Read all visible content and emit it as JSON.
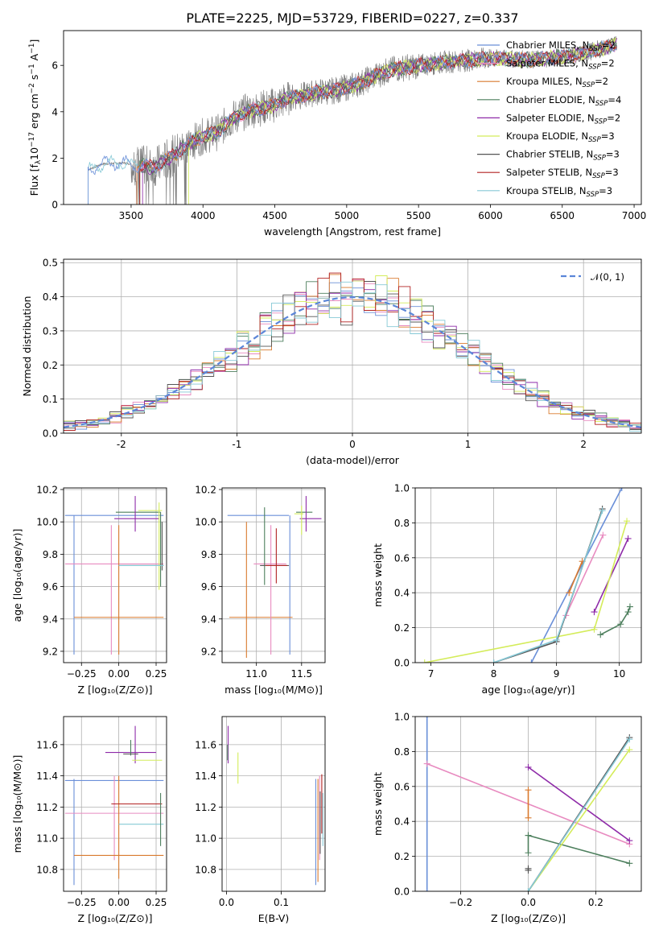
{
  "title": "PLATE=2225, MJD=53729, FIBERID=0227, z=0.337",
  "colors": {
    "chabrier_miles": "#6a8fd8",
    "salpeter_miles": "#e88bc0",
    "kroupa_miles": "#d97a2e",
    "chabrier_elodie": "#4d7f5d",
    "salpeter_elodie": "#8e2aa8",
    "kroupa_elodie": "#d4ec5a",
    "chabrier_stelib": "#555555",
    "salpeter_stelib": "#b22222",
    "kroupa_stelib": "#86c9d6",
    "gauss": "#5b86d8"
  },
  "chart_data": [
    {
      "id": "spectrum",
      "type": "line",
      "xlabel": "wavelength [Angstrom, rest frame]",
      "ylabel_parts": [
        "Flux [f",
        "λ",
        "10",
        "−17",
        " erg cm",
        "−2",
        " s",
        "−1",
        " A",
        "−1",
        "]"
      ],
      "xlim": [
        3030,
        7050
      ],
      "ylim": [
        0,
        7.5
      ],
      "xticks": [
        3500,
        4000,
        4500,
        5000,
        5500,
        6000,
        6500,
        7000
      ],
      "yticks": [
        0,
        2,
        4,
        6
      ],
      "start": 3200,
      "end": 6880,
      "continuum": [
        [
          3200,
          1.5
        ],
        [
          3300,
          1.75
        ],
        [
          3450,
          1.8
        ],
        [
          3550,
          1.7
        ],
        [
          3650,
          1.6
        ],
        [
          3700,
          1.75
        ],
        [
          3800,
          2.15
        ],
        [
          3900,
          2.6
        ],
        [
          4000,
          2.95
        ],
        [
          4100,
          3.1
        ],
        [
          4200,
          3.7
        ],
        [
          4300,
          4.0
        ],
        [
          4400,
          4.15
        ],
        [
          4500,
          4.3
        ],
        [
          4600,
          4.6
        ],
        [
          4700,
          4.7
        ],
        [
          4800,
          4.85
        ],
        [
          4900,
          4.9
        ],
        [
          5000,
          5.05
        ],
        [
          5100,
          5.25
        ],
        [
          5200,
          5.55
        ],
        [
          5300,
          5.8
        ],
        [
          5500,
          6.0
        ],
        [
          5700,
          6.15
        ],
        [
          6000,
          6.3
        ],
        [
          6300,
          6.25
        ],
        [
          6600,
          6.45
        ],
        [
          6880,
          6.9
        ]
      ],
      "legend": [
        {
          "label": "Chabrier MILES, N",
          "sub": "SSP",
          "tail": "=2",
          "color_key": "chabrier_miles"
        },
        {
          "label": "Salpeter MILES, N",
          "sub": "SSP",
          "tail": "=2",
          "color_key": "salpeter_miles"
        },
        {
          "label": "Kroupa MILES, N",
          "sub": "SSP",
          "tail": "=2",
          "color_key": "kroupa_miles"
        },
        {
          "label": "Chabrier ELODIE, N",
          "sub": "SSP",
          "tail": "=4",
          "color_key": "chabrier_elodie"
        },
        {
          "label": "Salpeter ELODIE, N",
          "sub": "SSP",
          "tail": "=2",
          "color_key": "salpeter_elodie"
        },
        {
          "label": "Kroupa ELODIE, N",
          "sub": "SSP",
          "tail": "=3",
          "color_key": "kroupa_elodie"
        },
        {
          "label": "Chabrier STELIB, N",
          "sub": "SSP",
          "tail": "=3",
          "color_key": "chabrier_stelib"
        },
        {
          "label": "Salpeter STELIB, N",
          "sub": "SSP",
          "tail": "=3",
          "color_key": "salpeter_stelib"
        },
        {
          "label": "Kroupa STELIB, N",
          "sub": "SSP",
          "tail": "=3",
          "color_key": "kroupa_stelib"
        }
      ]
    },
    {
      "id": "residuals",
      "type": "histogram",
      "xlabel": "(data-model)/error",
      "ylabel": "Normed distribution",
      "xlim": [
        -2.5,
        2.5
      ],
      "ylim": [
        0,
        0.51
      ],
      "xticks": [
        -2,
        -1,
        0,
        1,
        2
      ],
      "yticks": [
        0.0,
        0.1,
        0.2,
        0.3,
        0.4,
        0.5
      ],
      "bin_width": 0.1,
      "legend_label": "𝒩(0, 1)"
    },
    {
      "id": "age_vs_Z",
      "type": "errorbar",
      "xlabel": "Z [log₁₀(Z/Z⊙)]",
      "ylabel": "age  [log₁₀(age/yr)]",
      "xlim": [
        -0.37,
        0.32
      ],
      "ylim": [
        9.13,
        10.21
      ],
      "xticks": [
        -0.25,
        0.0,
        0.25
      ],
      "xtick_labels": [
        "−0.25",
        "0.00",
        "0.25"
      ],
      "yticks": [
        9.2,
        9.4,
        9.6,
        9.8,
        10.0,
        10.2
      ],
      "points": [
        {
          "x": -0.3,
          "xerr": 0.0,
          "y": 9.61,
          "yerr": 0.43,
          "c": "chabrier_miles"
        },
        {
          "x": -0.03,
          "xerr": 0.33,
          "y": 10.04,
          "yerr": 0.0,
          "c": "chabrier_miles"
        },
        {
          "x": -0.03,
          "xerr": 0.33,
          "y": 9.74,
          "yerr": 0.0,
          "c": "salpeter_miles"
        },
        {
          "x": -0.05,
          "xerr": 0.0,
          "y": 9.58,
          "yerr": 0.4,
          "c": "salpeter_miles"
        },
        {
          "x": 0.0,
          "xerr": 0.3,
          "y": 9.41,
          "yerr": 0.0,
          "c": "kroupa_miles"
        },
        {
          "x": 0.0,
          "xerr": 0.0,
          "y": 9.58,
          "yerr": 0.4,
          "c": "kroupa_miles"
        },
        {
          "x": 0.13,
          "xerr": 0.15,
          "y": 10.06,
          "yerr": 0.0,
          "c": "chabrier_elodie"
        },
        {
          "x": 0.28,
          "xerr": 0.0,
          "y": 9.83,
          "yerr": 0.23,
          "c": "chabrier_elodie"
        },
        {
          "x": 0.12,
          "xerr": 0.15,
          "y": 10.02,
          "yerr": 0.0,
          "c": "salpeter_elodie"
        },
        {
          "x": 0.11,
          "xerr": 0.0,
          "y": 10.05,
          "yerr": 0.11,
          "c": "salpeter_elodie"
        },
        {
          "x": 0.27,
          "xerr": 0.0,
          "y": 9.85,
          "yerr": 0.27,
          "c": "kroupa_elodie"
        },
        {
          "x": 0.21,
          "xerr": 0.08,
          "y": 10.07,
          "yerr": 0.0,
          "c": "kroupa_elodie"
        },
        {
          "x": 0.15,
          "xerr": 0.15,
          "y": 9.73,
          "yerr": 0.0,
          "c": "chabrier_stelib"
        },
        {
          "x": 0.29,
          "xerr": 0.0,
          "y": 9.85,
          "yerr": 0.15,
          "c": "chabrier_stelib"
        },
        {
          "x": 0.15,
          "xerr": 0.15,
          "y": 9.73,
          "yerr": 0.0,
          "c": "kroupa_stelib"
        }
      ]
    },
    {
      "id": "age_vs_mass",
      "type": "errorbar",
      "xlabel": "mass [log₁₀(M/M⊙)]",
      "ylabel": "",
      "xlim": [
        10.62,
        11.76
      ],
      "ylim": [
        9.13,
        10.21
      ],
      "xticks": [
        11.0,
        11.5
      ],
      "xtick_labels": [
        "11.0",
        "11.5"
      ],
      "yticks": [
        9.2,
        9.4,
        9.6,
        9.8,
        10.0,
        10.2
      ],
      "points": [
        {
          "x": 11.02,
          "xerr": 0.34,
          "y": 10.04,
          "yerr": 0.0,
          "c": "chabrier_miles"
        },
        {
          "x": 11.37,
          "xerr": 0.0,
          "y": 9.61,
          "yerr": 0.43,
          "c": "chabrier_miles"
        },
        {
          "x": 11.05,
          "xerr": 0.35,
          "y": 9.41,
          "yerr": 0.0,
          "c": "kroupa_miles"
        },
        {
          "x": 10.89,
          "xerr": 0.0,
          "y": 9.58,
          "yerr": 0.42,
          "c": "kroupa_miles"
        },
        {
          "x": 11.16,
          "xerr": 0.0,
          "y": 9.58,
          "yerr": 0.4,
          "c": "salpeter_miles"
        },
        {
          "x": 11.15,
          "xerr": 0.18,
          "y": 9.74,
          "yerr": 0.0,
          "c": "salpeter_miles"
        },
        {
          "x": 11.09,
          "xerr": 0.0,
          "y": 9.85,
          "yerr": 0.24,
          "c": "chabrier_elodie"
        },
        {
          "x": 11.2,
          "xerr": 0.16,
          "y": 9.73,
          "yerr": 0.0,
          "c": "chabrier_stelib"
        },
        {
          "x": 11.22,
          "xerr": 0.0,
          "y": 9.79,
          "yerr": 0.17,
          "c": "salpeter_stelib"
        },
        {
          "x": 11.22,
          "xerr": 0.12,
          "y": 9.73,
          "yerr": 0.0,
          "c": "salpeter_stelib"
        },
        {
          "x": 11.53,
          "xerr": 0.09,
          "y": 10.06,
          "yerr": 0.0,
          "c": "chabrier_elodie"
        },
        {
          "x": 11.55,
          "xerr": 0.0,
          "y": 10.05,
          "yerr": 0.11,
          "c": "salpeter_elodie"
        },
        {
          "x": 11.6,
          "xerr": 0.12,
          "y": 10.02,
          "yerr": 0.0,
          "c": "salpeter_elodie"
        },
        {
          "x": 11.5,
          "xerr": 0.0,
          "y": 10.01,
          "yerr": 0.09,
          "c": "kroupa_elodie"
        },
        {
          "x": 11.47,
          "xerr": 0.05,
          "y": 10.05,
          "yerr": 0.0,
          "c": "kroupa_elodie"
        }
      ]
    },
    {
      "id": "weight_vs_age",
      "type": "line",
      "xlabel": "age  [log₁₀(age/yr)]",
      "ylabel": "mass weight",
      "xlim": [
        6.75,
        10.35
      ],
      "ylim": [
        0,
        1.0
      ],
      "xticks": [
        7,
        8,
        9,
        10
      ],
      "xtick_labels": [
        "7",
        "8",
        "9",
        "10"
      ],
      "yticks": [
        0.0,
        0.2,
        0.4,
        0.6,
        0.8,
        1.0
      ],
      "series": [
        {
          "c": "chabrier_miles",
          "x": [
            8.6,
            10.04
          ],
          "y": [
            0.0,
            1.0
          ]
        },
        {
          "c": "salpeter_miles",
          "x": [
            9.15,
            9.74
          ],
          "y": [
            0.27,
            0.73
          ]
        },
        {
          "c": "kroupa_miles",
          "x": [
            9.2,
            9.41
          ],
          "y": [
            0.4,
            0.58
          ]
        },
        {
          "c": "chabrier_elodie",
          "x": [
            9.7,
            10.02,
            10.14,
            10.17
          ],
          "y": [
            0.16,
            0.22,
            0.29,
            0.32
          ]
        },
        {
          "c": "salpeter_elodie",
          "x": [
            9.6,
            10.14
          ],
          "y": [
            0.29,
            0.71
          ]
        },
        {
          "c": "kroupa_elodie",
          "x": [
            6.9,
            9.6,
            10.12
          ],
          "y": [
            0.0,
            0.19,
            0.81
          ]
        },
        {
          "c": "chabrier_stelib",
          "x": [
            8.0,
            9.0,
            9.73
          ],
          "y": [
            0.0,
            0.12,
            0.88
          ]
        },
        {
          "c": "kroupa_stelib",
          "x": [
            8.0,
            9.0,
            9.73
          ],
          "y": [
            0.0,
            0.13,
            0.87
          ]
        }
      ]
    },
    {
      "id": "mass_vs_Z",
      "type": "errorbar",
      "xlabel": "Z [log₁₀(Z/Z⊙)]",
      "ylabel": "mass [log₁₀(M/M⊙)]",
      "xlim": [
        -0.37,
        0.32
      ],
      "ylim": [
        10.66,
        11.78
      ],
      "xticks": [
        -0.25,
        0.0,
        0.25
      ],
      "xtick_labels": [
        "−0.25",
        "0.00",
        "0.25"
      ],
      "yticks": [
        10.8,
        11.0,
        11.2,
        11.4,
        11.6
      ],
      "points": [
        {
          "x": -0.3,
          "xerr": 0.0,
          "y": 11.04,
          "yerr": 0.34,
          "c": "chabrier_miles"
        },
        {
          "x": -0.03,
          "xerr": 0.33,
          "y": 11.37,
          "yerr": 0.0,
          "c": "chabrier_miles"
        },
        {
          "x": -0.03,
          "xerr": 0.33,
          "y": 11.16,
          "yerr": 0.0,
          "c": "salpeter_miles"
        },
        {
          "x": -0.03,
          "xerr": 0.0,
          "y": 11.13,
          "yerr": 0.27,
          "c": "salpeter_miles"
        },
        {
          "x": 0.0,
          "xerr": 0.3,
          "y": 10.89,
          "yerr": 0.0,
          "c": "kroupa_miles"
        },
        {
          "x": 0.0,
          "xerr": 0.0,
          "y": 11.07,
          "yerr": 0.33,
          "c": "kroupa_miles"
        },
        {
          "x": 0.12,
          "xerr": 0.17,
          "y": 11.22,
          "yerr": 0.0,
          "c": "salpeter_stelib"
        },
        {
          "x": 0.15,
          "xerr": 0.15,
          "y": 11.09,
          "yerr": 0.0,
          "c": "kroupa_stelib"
        },
        {
          "x": 0.28,
          "xerr": 0.0,
          "y": 11.12,
          "yerr": 0.17,
          "c": "chabrier_elodie"
        },
        {
          "x": 0.08,
          "xerr": 0.17,
          "y": 11.55,
          "yerr": 0.0,
          "c": "salpeter_elodie"
        },
        {
          "x": 0.11,
          "xerr": 0.0,
          "y": 11.6,
          "yerr": 0.12,
          "c": "salpeter_elodie"
        },
        {
          "x": 0.19,
          "xerr": 0.1,
          "y": 11.5,
          "yerr": 0.0,
          "c": "kroupa_elodie"
        },
        {
          "x": 0.08,
          "xerr": 0.0,
          "y": 11.58,
          "yerr": 0.05,
          "c": "chabrier_elodie"
        },
        {
          "x": 0.08,
          "xerr": 0.05,
          "y": 11.54,
          "yerr": 0.0,
          "c": "chabrier_stelib"
        }
      ]
    },
    {
      "id": "mass_vs_ebv",
      "type": "errorbar",
      "xlabel": "E(B-V)",
      "ylabel": "",
      "xlim": [
        -0.008,
        0.18
      ],
      "ylim": [
        10.66,
        11.78
      ],
      "xticks": [
        0.0,
        0.1
      ],
      "xtick_labels": [
        "0.0",
        "0.1"
      ],
      "yticks": [
        10.8,
        11.0,
        11.2,
        11.4,
        11.6
      ],
      "points": [
        {
          "x": 0.003,
          "xerr": 0.0,
          "y": 11.6,
          "yerr": 0.12,
          "c": "salpeter_elodie"
        },
        {
          "x": 0.002,
          "xerr": 0.0,
          "y": 11.55,
          "yerr": 0.05,
          "c": "chabrier_elodie"
        },
        {
          "x": 0.021,
          "xerr": 0.0,
          "y": 11.45,
          "yerr": 0.1,
          "c": "kroupa_elodie"
        },
        {
          "x": 0.163,
          "xerr": 0.0,
          "y": 11.04,
          "yerr": 0.34,
          "c": "chabrier_miles"
        },
        {
          "x": 0.167,
          "xerr": 0.0,
          "y": 11.05,
          "yerr": 0.33,
          "c": "kroupa_miles"
        },
        {
          "x": 0.17,
          "xerr": 0.0,
          "y": 11.13,
          "yerr": 0.27,
          "c": "salpeter_miles"
        },
        {
          "x": 0.171,
          "xerr": 0.0,
          "y": 11.1,
          "yerr": 0.2,
          "c": "chabrier_stelib"
        },
        {
          "x": 0.174,
          "xerr": 0.0,
          "y": 11.22,
          "yerr": 0.19,
          "c": "salpeter_stelib"
        },
        {
          "x": 0.176,
          "xerr": 0.0,
          "y": 11.12,
          "yerr": 0.17,
          "c": "kroupa_stelib"
        }
      ]
    },
    {
      "id": "weight_vs_Z",
      "type": "line",
      "xlabel": "Z [log₁₀(Z/Z⊙)]",
      "ylabel": "mass weight",
      "xlim": [
        -0.335,
        0.335
      ],
      "ylim": [
        0,
        1.0
      ],
      "xticks": [
        -0.2,
        0.0,
        0.2
      ],
      "xtick_labels": [
        "−0.2",
        "0.0",
        "0.2"
      ],
      "yticks": [
        0.0,
        0.2,
        0.4,
        0.6,
        0.8,
        1.0
      ],
      "series": [
        {
          "c": "chabrier_miles",
          "x": [
            -0.3,
            -0.3
          ],
          "y": [
            0.0,
            1.0
          ]
        },
        {
          "c": "salpeter_miles",
          "x": [
            -0.3,
            0.3
          ],
          "y": [
            0.73,
            0.27
          ]
        },
        {
          "c": "kroupa_miles",
          "x": [
            0.0,
            0.0
          ],
          "y": [
            0.42,
            0.58
          ]
        },
        {
          "c": "salpeter_elodie",
          "x": [
            0.0,
            0.3
          ],
          "y": [
            0.71,
            0.29
          ]
        },
        {
          "c": "chabrier_elodie",
          "x": [
            0.0,
            0.3
          ],
          "y": [
            0.32,
            0.16
          ]
        },
        {
          "c": "chabrier_elodie",
          "x": [
            0.0,
            0.0
          ],
          "y": [
            0.22,
            0.32
          ]
        },
        {
          "c": "kroupa_elodie",
          "x": [
            0.0,
            0.3
          ],
          "y": [
            0.0,
            0.81
          ]
        },
        {
          "c": "chabrier_stelib",
          "x": [
            0.0,
            0.3
          ],
          "y": [
            0.0,
            0.88
          ]
        },
        {
          "c": "kroupa_stelib",
          "x": [
            0.0,
            0.3
          ],
          "y": [
            0.0,
            0.87
          ]
        },
        {
          "c": "chabrier_stelib",
          "x": [
            0.0,
            0.0
          ],
          "y": [
            0.12,
            0.13
          ]
        }
      ]
    }
  ]
}
